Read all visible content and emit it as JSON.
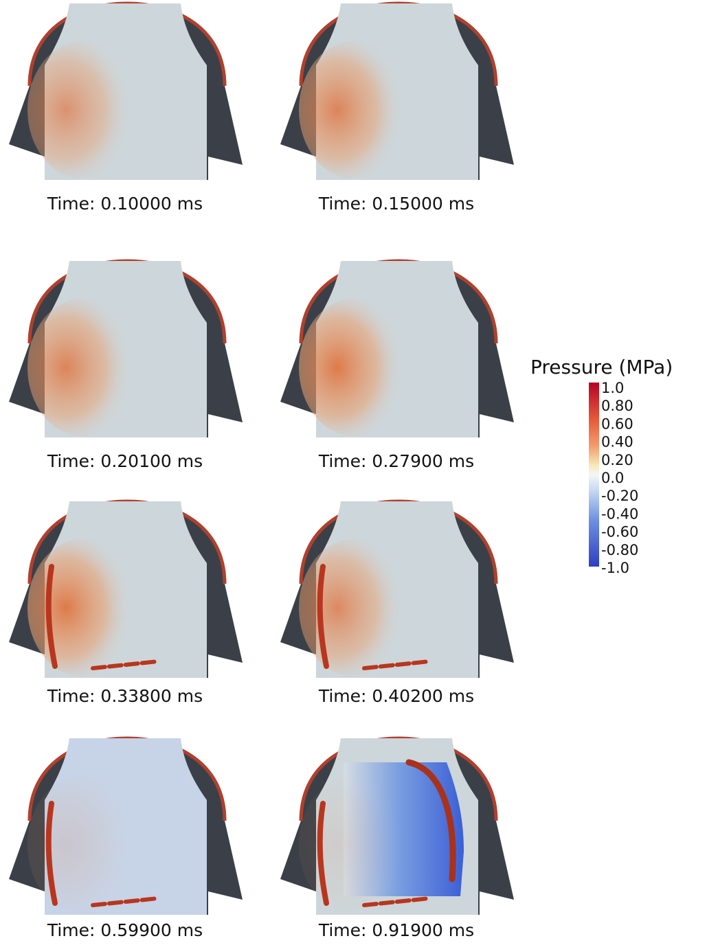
{
  "panels": [
    {
      "caption": "Time: 0.10000 ms"
    },
    {
      "caption": "Time: 0.15000 ms"
    },
    {
      "caption": "Time: 0.20100 ms"
    },
    {
      "caption": "Time: 0.27900 ms"
    },
    {
      "caption": "Time: 0.33800 ms"
    },
    {
      "caption": "Time: 0.40200 ms"
    },
    {
      "caption": "Time: 0.59900 ms"
    },
    {
      "caption": "Time: 0.91900 ms"
    }
  ],
  "colorbar": {
    "title": "Pressure (MPa)",
    "labels": [
      "1.0",
      "0.80",
      "0.60",
      "0.40",
      "0.20",
      "0.0",
      "-0.20",
      "-0.40",
      "-0.60",
      "-0.80",
      "-1.0"
    ]
  }
}
